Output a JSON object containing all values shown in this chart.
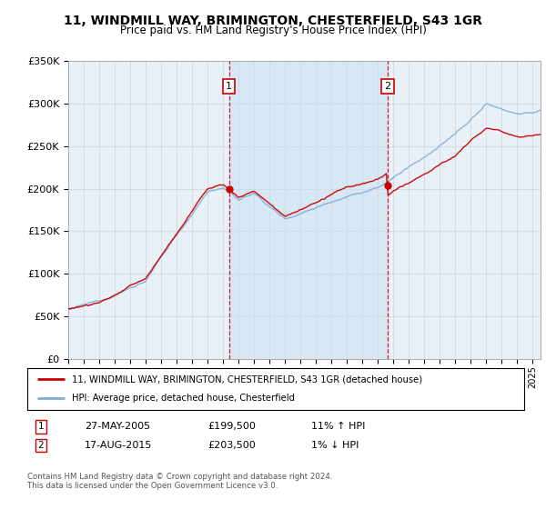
{
  "title": "11, WINDMILL WAY, BRIMINGTON, CHESTERFIELD, S43 1GR",
  "subtitle": "Price paid vs. HM Land Registry's House Price Index (HPI)",
  "legend_line1": "11, WINDMILL WAY, BRIMINGTON, CHESTERFIELD, S43 1GR (detached house)",
  "legend_line2": "HPI: Average price, detached house, Chesterfield",
  "transaction1_date": "27-MAY-2005",
  "transaction1_price": "£199,500",
  "transaction1_hpi": "11% ↑ HPI",
  "transaction1_year": 2005.38,
  "transaction2_date": "17-AUG-2015",
  "transaction2_price": "£203,500",
  "transaction2_hpi": "1% ↓ HPI",
  "transaction2_year": 2015.62,
  "footnote": "Contains HM Land Registry data © Crown copyright and database right 2024.\nThis data is licensed under the Open Government Licence v3.0.",
  "ylim": [
    0,
    350000
  ],
  "xlim_start": 1995,
  "xlim_end": 2025.5,
  "red_color": "#cc0000",
  "blue_color": "#7aabdb",
  "blue_fill_color": "#c8dff0",
  "bg_color": "#e8f0f8",
  "grid_color": "#cccccc",
  "vline_color": "#cc0000"
}
